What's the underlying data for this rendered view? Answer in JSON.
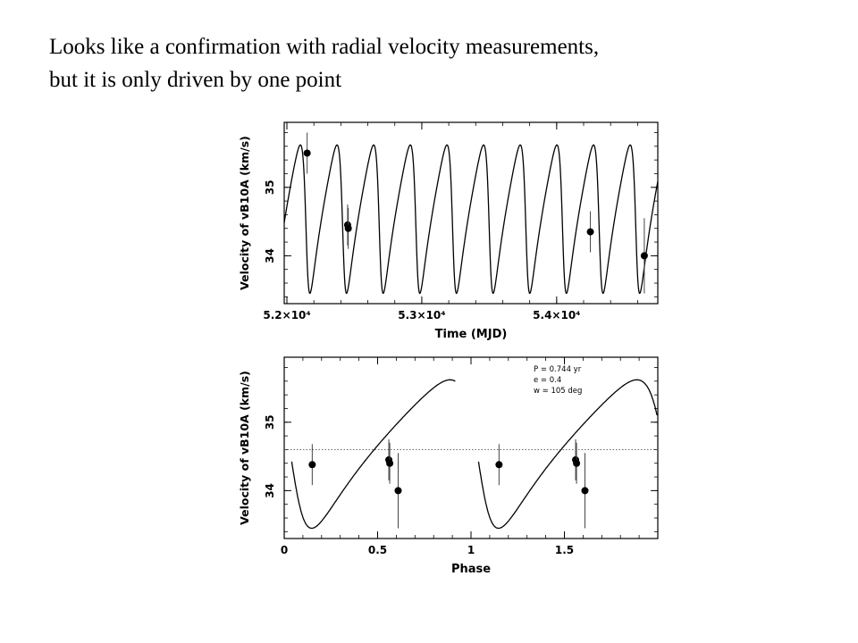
{
  "slide": {
    "title_line1": "Looks like a confirmation with radial velocity measurements,",
    "title_line2": "but it is only driven by one point"
  },
  "chart_data": [
    {
      "type": "line",
      "xlabel": "Time (MJD)",
      "ylabel": "Velocity of vB10A (km/s)",
      "xlim": [
        51980,
        54750
      ],
      "ylim": [
        33.3,
        35.95
      ],
      "xticks": [
        {
          "value": 52000,
          "label": "5.2×10⁴"
        },
        {
          "value": 53000,
          "label": "5.3×10⁴"
        },
        {
          "value": 54000,
          "label": "5.4×10⁴"
        }
      ],
      "yticks": [
        {
          "value": 34,
          "label": "34"
        },
        {
          "value": 35,
          "label": "35"
        }
      ],
      "model": {
        "period_yr": 0.744,
        "period_days": 271.7,
        "ecc": 0.4,
        "omega_deg": 105
      },
      "points": [
        {
          "x": 52150,
          "y": 35.5,
          "err": 0.3
        },
        {
          "x": 52450,
          "y": 34.45,
          "err": 0.3
        },
        {
          "x": 52455,
          "y": 34.4,
          "err": 0.3
        },
        {
          "x": 54250,
          "y": 34.35,
          "err": 0.3
        },
        {
          "x": 54650,
          "y": 34.0,
          "err": 0.55
        }
      ]
    },
    {
      "type": "line",
      "xlabel": "Phase",
      "ylabel": "Velocity of vB10A (km/s)",
      "xlim": [
        0,
        2
      ],
      "ylim": [
        33.3,
        35.95
      ],
      "xticks": [
        {
          "value": 0,
          "label": "0"
        },
        {
          "value": 0.5,
          "label": "0.5"
        },
        {
          "value": 1,
          "label": "1"
        },
        {
          "value": 1.5,
          "label": "1.5"
        }
      ],
      "yticks": [
        {
          "value": 34,
          "label": "34"
        },
        {
          "value": 35,
          "label": "35"
        }
      ],
      "reference_line_y": 34.6,
      "annotations": [
        "P = 0.744 yr",
        "e = 0.4",
        "w = 105 deg"
      ],
      "points": [
        {
          "x": 0.15,
          "y": 34.38,
          "err": 0.3
        },
        {
          "x": 0.56,
          "y": 34.45,
          "err": 0.3
        },
        {
          "x": 0.565,
          "y": 34.4,
          "err": 0.3
        },
        {
          "x": 0.61,
          "y": 34.0,
          "err": 0.55
        },
        {
          "x": 1.15,
          "y": 34.38,
          "err": 0.3
        },
        {
          "x": 1.56,
          "y": 34.45,
          "err": 0.3
        },
        {
          "x": 1.565,
          "y": 34.4,
          "err": 0.3
        },
        {
          "x": 1.61,
          "y": 34.0,
          "err": 0.55
        }
      ]
    }
  ]
}
